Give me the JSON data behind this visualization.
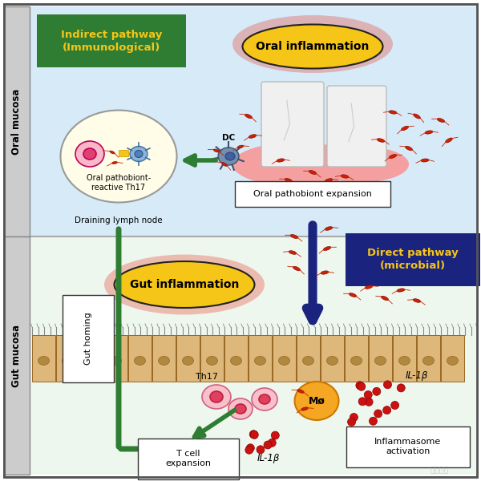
{
  "bg_color": "#ffffff",
  "oral_mucosa_bg": "#d6eaf8",
  "gut_mucosa_bg": "#eef7ee",
  "oral_mucosa_label": "Oral mucosa",
  "gut_mucosa_label": "Gut mucosa",
  "indirect_pathway_label": "Indirect pathway\n(Immunological)",
  "indirect_pathway_bg": "#2e7d32",
  "direct_pathway_label": "Direct pathway\n(microbial)",
  "direct_pathway_bg": "#1a237e",
  "oral_inflammation_label": "Oral inflammation",
  "oral_inflammation_bg": "#f5c518",
  "oral_inflammation_glow": "#e74c3c",
  "gut_inflammation_label": "Gut inflammation",
  "gut_inflammation_bg": "#f5c518",
  "gut_inflammation_glow": "#e74c3c",
  "oral_pathobiont_label": "Oral pathobiont expansion",
  "draining_lymph_label": "Draining lymph node",
  "oral_reactive_label": "Oral pathobiont-\nreactive Th17",
  "dc_label": "DC",
  "th17_label": "Th17",
  "mo_label": "Mø",
  "il1b_label1": "IL-1β",
  "il1b_label2": "IL-1β",
  "t_cell_label": "T cell\nexpansion",
  "inflammasome_label": "Inflammasome\nactivation",
  "gut_homing_label": "Gut homing",
  "bacteria_color": "#cc2200",
  "arrow_green": "#2e7d32",
  "arrow_blue": "#1a237e",
  "tooth_color": "#f0f0f0",
  "gum_color": "#f4a0a0",
  "intestine_cell_color": "#ddb87a",
  "intestine_nucleus_color": "#b08840",
  "intestine_border": "#996622",
  "watermark": "承诺商城"
}
